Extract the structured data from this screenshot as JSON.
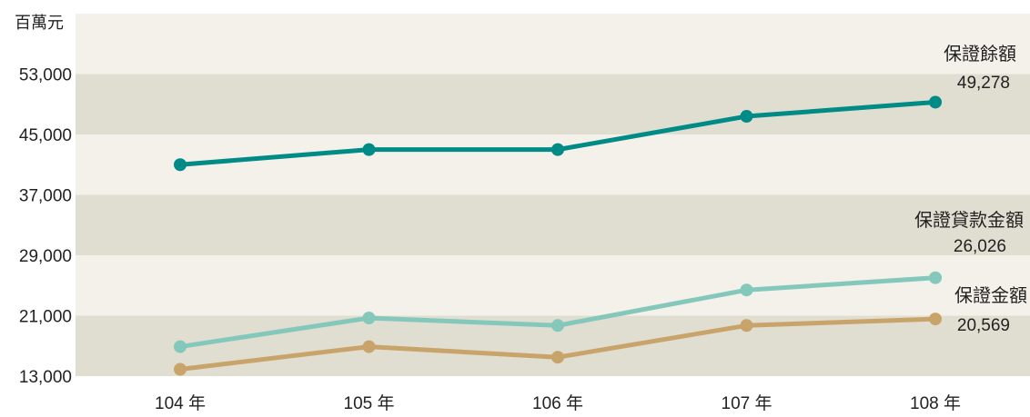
{
  "chart_data": {
    "type": "line",
    "unit_label": "百萬元",
    "categories": [
      "104 年",
      "105 年",
      "106 年",
      "107 年",
      "108 年"
    ],
    "y_ticks": [
      "13,000",
      "21,000",
      "29,000",
      "37,000",
      "45,000",
      "53,000"
    ],
    "ylim": [
      13000,
      61000
    ],
    "band_colors": [
      "#e0ddd1",
      "#f3f1ea"
    ],
    "series": [
      {
        "name": "保證餘額",
        "end_label": "49,278",
        "color": "#008b87",
        "values": [
          41000,
          43000,
          43000,
          47400,
          49278
        ]
      },
      {
        "name": "保證貸款金額",
        "end_label": "26,026",
        "color": "#84c8bc",
        "values": [
          16900,
          20700,
          19700,
          24400,
          26026
        ]
      },
      {
        "name": "保證金額",
        "end_label": "20,569",
        "color": "#c9a46a",
        "values": [
          13900,
          16900,
          15500,
          19700,
          20569
        ]
      }
    ]
  }
}
